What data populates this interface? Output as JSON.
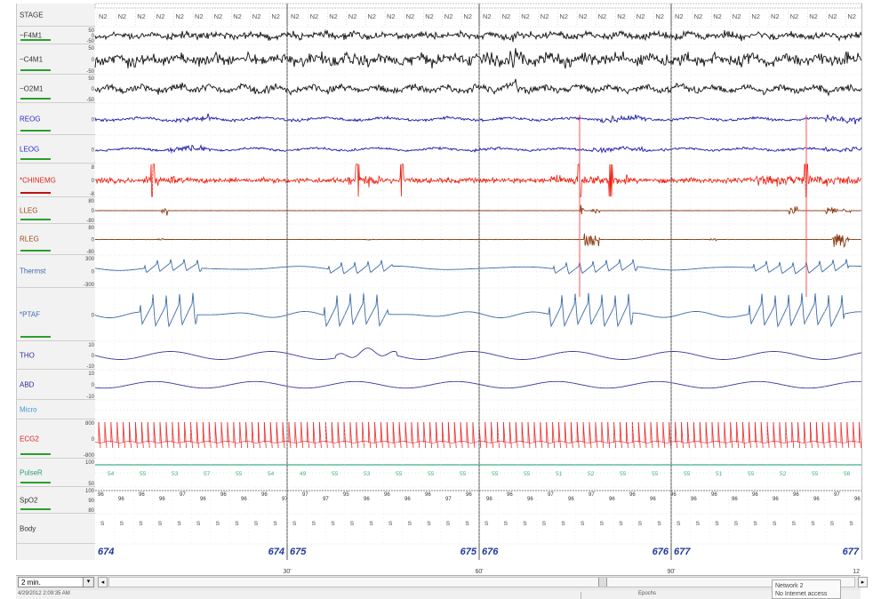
{
  "channels": [
    {
      "name": "STAGE",
      "color": "#333333",
      "bar": null
    },
    {
      "name": "~F4M1",
      "color": "#333333",
      "bar": "#2aa02a"
    },
    {
      "name": "~C4M1",
      "color": "#333333",
      "bar": "#2aa02a"
    },
    {
      "name": "~O2M1",
      "color": "#333333",
      "bar": "#2aa02a"
    },
    {
      "name": "REOG",
      "color": "#2b2bd0",
      "bar": "#2aa02a"
    },
    {
      "name": "LEOG",
      "color": "#2b2bd0",
      "bar": "#2aa02a"
    },
    {
      "name": "*CHINEMG",
      "color": "#e0201a",
      "bar": "#c01010"
    },
    {
      "name": "LLEG",
      "color": "#9a4a1a",
      "bar": "#2aa02a"
    },
    {
      "name": "RLEG",
      "color": "#9a4a1a",
      "bar": "#2aa02a"
    },
    {
      "name": "Thermst",
      "color": "#3a6ab0",
      "bar": null
    },
    {
      "name": "*PTAF",
      "color": "#3a6ab0",
      "bar": "#2aa02a"
    },
    {
      "name": "THO",
      "color": "#2b2ba0",
      "bar": null
    },
    {
      "name": "ABD",
      "color": "#2b2ba0",
      "bar": null
    },
    {
      "name": "Micro",
      "color": "#3a9ad8",
      "bar": null
    },
    {
      "name": "ECG2",
      "color": "#e0201a",
      "bar": "#2aa02a"
    },
    {
      "name": "PulseR",
      "color": "#2aa070",
      "bar": "#2aa02a"
    },
    {
      "name": "SpO2",
      "color": "#333333",
      "bar": "#2aa02a"
    },
    {
      "name": "Body",
      "color": "#333333",
      "bar": null
    }
  ],
  "stage_label": "N2",
  "scale_labels": {
    "eeg": [
      "50",
      "0",
      "-50"
    ],
    "eog": [
      "0"
    ],
    "emg": [
      "8",
      "0",
      "-8"
    ],
    "leg": [
      "80",
      "0",
      "-80"
    ],
    "thermst": [
      "300",
      "0",
      "-300"
    ],
    "ptaf": [
      "0"
    ],
    "resp": [
      "10",
      "0",
      "-10"
    ],
    "ecg": [
      "800",
      "0",
      "-800"
    ],
    "pulse": [
      "100",
      "50"
    ],
    "spo2": [
      "100",
      "90",
      "80"
    ]
  },
  "pulse_values": [
    "54",
    "55",
    "53",
    "57",
    "55",
    "54",
    "49",
    "55",
    "53",
    "55",
    "55",
    "55",
    "55",
    "55",
    "51",
    "52",
    "55",
    "55",
    "55",
    "51",
    "55",
    "52",
    "55",
    "56"
  ],
  "spo2_values": [
    "96",
    "96",
    "96",
    "96",
    "97",
    "96",
    "96",
    "96",
    "96",
    "97",
    "97",
    "97",
    "95",
    "96",
    "96",
    "96",
    "96",
    "97",
    "96",
    "98",
    "96",
    "96",
    "97",
    "96",
    "97",
    "96",
    "96",
    "96",
    "96",
    "96",
    "96",
    "96",
    "96",
    "96",
    "96",
    "96",
    "97",
    "96"
  ],
  "body_label": "S",
  "epochs": [
    {
      "start": "674",
      "end": "674"
    },
    {
      "start": "675",
      "end": "675"
    },
    {
      "start": "676",
      "end": "676"
    },
    {
      "start": "677",
      "end": "677"
    }
  ],
  "time_ticks": [
    "30'",
    "60'",
    "90'",
    "12"
  ],
  "zoom_value": "2 min.",
  "scroll_arrows": {
    "left": "◂",
    "right": "▸",
    "dropdown": "▾"
  },
  "status_time": "4/29/2012 2:09:35 AM",
  "status_fragment": "Epochs",
  "network_popup": [
    "Network 2",
    "No Internet access"
  ],
  "colors": {
    "eeg": "#111111",
    "eog": "#1a1aa8",
    "emg": "#ee2010",
    "leg": "#8a3a10",
    "flow": "#3a6aa8",
    "resp": "#3a3aa0",
    "ecg": "#ee2a2a",
    "pulse": "#40b080",
    "grid": "#bbbbbb",
    "epoch_label": "#1f3a9a"
  }
}
